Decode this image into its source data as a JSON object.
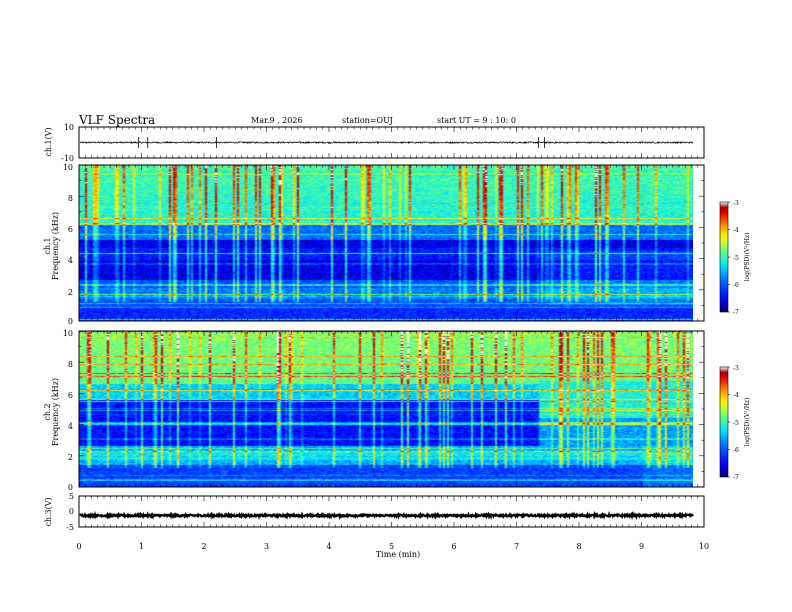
{
  "chart_data": {
    "type": "heatmap",
    "header": {
      "title": "VLF Spectra",
      "date": "Mar.9  , 2026",
      "station": "station=OUJ",
      "start": "start  UT =   9 : 10: 0"
    },
    "xlabel": "Time  (min)",
    "xlim": [
      0,
      10
    ],
    "xticks": [
      "0",
      "1",
      "2",
      "3",
      "4",
      "5",
      "6",
      "7",
      "8",
      "9",
      "10"
    ],
    "data_end_min": 9.83,
    "panels": [
      {
        "kind": "waveform",
        "ylabel": "ch.1(V)",
        "ylim": [
          -10,
          10
        ],
        "yticks": [
          "10",
          "-10"
        ],
        "baseline": 0,
        "noise_amp": 0.5,
        "spikes_at_min": [
          0.95,
          1.1,
          2.2,
          7.35,
          7.45
        ]
      },
      {
        "kind": "spectrogram",
        "ylabel": "Frequency  (kHz)",
        "channel": "ch.1",
        "ylim": [
          0,
          10
        ],
        "yticks": [
          "0",
          "2",
          "4",
          "6",
          "8",
          "10"
        ],
        "colorbar": {
          "label": "log(PSD)(V²/Hz)",
          "range": [
            -7,
            -3
          ],
          "ticks": [
            "-3",
            "-4",
            "-5",
            "-6",
            "-7"
          ]
        }
      },
      {
        "kind": "spectrogram",
        "ylabel": "Frequency  (kHz)",
        "channel": "ch.2",
        "ylim": [
          0,
          10
        ],
        "yticks": [
          "0",
          "2",
          "4",
          "6",
          "8",
          "10"
        ],
        "colorbar": {
          "label": "log(PSD)(V²/Hz)",
          "range": [
            -7,
            -3
          ],
          "ticks": [
            "-3",
            "-4",
            "-5",
            "-6",
            "-7"
          ]
        }
      },
      {
        "kind": "waveform",
        "ylabel": "ch.3(V)",
        "ylim": [
          -5,
          5
        ],
        "yticks": [
          "5",
          "0",
          "-5"
        ],
        "baseline": -1.3,
        "noise_amp": 0.3
      }
    ]
  },
  "colors": {
    "scale": [
      "#00007f",
      "#0000ff",
      "#0080ff",
      "#00ffff",
      "#80ff80",
      "#ffff00",
      "#ff8000",
      "#ff0000",
      "#7f0000",
      "#ffffff"
    ]
  }
}
